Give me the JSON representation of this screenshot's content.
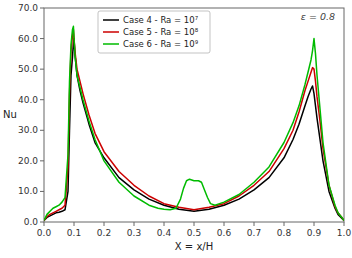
{
  "chart_data": {
    "type": "line",
    "x_label": "X = x/H",
    "y_label": "Nu",
    "annotation": "ε = 0.8",
    "xlim": [
      0.0,
      1.0
    ],
    "ylim": [
      0.0,
      70.0
    ],
    "xticks": [
      {
        "value": 0.0,
        "label": "0.0"
      },
      0.1,
      0.2,
      0.3,
      0.4,
      0.5,
      0.6,
      0.7,
      0.8,
      0.9,
      {
        "value": 1.0,
        "label": "1.0"
      }
    ],
    "yticks": [
      {
        "value": 0.0,
        "label": "0.0"
      },
      {
        "value": 10.0,
        "label": "10.0"
      },
      {
        "value": 20.0,
        "label": "20.0"
      },
      {
        "value": 30.0,
        "label": "30.0"
      },
      {
        "value": 40.0,
        "label": "40.0"
      },
      {
        "value": 50.0,
        "label": "50.0"
      },
      {
        "value": 60.0,
        "label": "60.0"
      },
      {
        "value": 70.0,
        "label": "70.0"
      }
    ],
    "grid": false,
    "legend": "upper left",
    "series": [
      {
        "name": "Case 4 - Ra = 10⁷",
        "color": "#000000",
        "x": [
          0.0,
          0.005,
          0.01,
          0.02,
          0.03,
          0.04,
          0.05,
          0.06,
          0.07,
          0.08,
          0.085,
          0.09,
          0.095,
          0.098,
          0.1,
          0.103,
          0.11,
          0.12,
          0.13,
          0.15,
          0.17,
          0.2,
          0.25,
          0.3,
          0.35,
          0.4,
          0.45,
          0.5,
          0.55,
          0.6,
          0.65,
          0.7,
          0.75,
          0.8,
          0.83,
          0.85,
          0.87,
          0.88,
          0.89,
          0.895,
          0.9,
          0.905,
          0.91,
          0.92,
          0.93,
          0.95,
          0.97,
          0.98,
          0.99,
          0.995,
          1.0
        ],
        "values": [
          0.5,
          1.0,
          1.5,
          2.0,
          2.5,
          3.0,
          3.2,
          3.5,
          4.0,
          10.0,
          30.0,
          48.0,
          54.0,
          58.5,
          60.0,
          55.0,
          48.0,
          43.0,
          39.0,
          32.0,
          26.0,
          21.0,
          14.5,
          10.5,
          7.5,
          5.5,
          4.2,
          3.5,
          4.2,
          5.5,
          7.5,
          10.5,
          14.5,
          21.0,
          27.0,
          32.0,
          38.0,
          41.0,
          43.5,
          44.5,
          42.0,
          38.0,
          34.0,
          27.0,
          20.0,
          10.0,
          4.5,
          2.5,
          1.5,
          1.0,
          0.5
        ]
      },
      {
        "name": "Case 5 - Ra = 10⁸",
        "color": "#cc0000",
        "x": [
          0.0,
          0.005,
          0.01,
          0.02,
          0.03,
          0.04,
          0.05,
          0.06,
          0.07,
          0.08,
          0.085,
          0.09,
          0.095,
          0.098,
          0.1,
          0.103,
          0.11,
          0.12,
          0.13,
          0.15,
          0.17,
          0.2,
          0.25,
          0.3,
          0.35,
          0.4,
          0.45,
          0.5,
          0.55,
          0.6,
          0.65,
          0.7,
          0.75,
          0.8,
          0.83,
          0.85,
          0.87,
          0.88,
          0.89,
          0.895,
          0.9,
          0.905,
          0.91,
          0.92,
          0.93,
          0.95,
          0.97,
          0.98,
          0.99,
          0.995,
          1.0
        ],
        "values": [
          0.5,
          1.2,
          1.8,
          2.5,
          3.0,
          3.5,
          4.0,
          4.5,
          5.5,
          18.0,
          42.0,
          56.0,
          61.0,
          63.0,
          60.0,
          56.0,
          50.0,
          46.0,
          42.0,
          35.0,
          29.0,
          23.0,
          16.5,
          12.0,
          8.5,
          6.0,
          4.8,
          4.0,
          4.8,
          6.0,
          8.5,
          12.0,
          16.5,
          24.0,
          30.0,
          36.0,
          43.0,
          46.0,
          49.0,
          50.5,
          50.0,
          46.0,
          41.0,
          33.0,
          24.0,
          12.0,
          5.0,
          3.0,
          1.8,
          1.2,
          0.5
        ]
      },
      {
        "name": "Case 6 - Ra = 10⁹",
        "color": "#00bb00",
        "x": [
          0.0,
          0.005,
          0.01,
          0.02,
          0.03,
          0.04,
          0.05,
          0.06,
          0.07,
          0.08,
          0.085,
          0.09,
          0.095,
          0.098,
          0.1,
          0.103,
          0.11,
          0.12,
          0.13,
          0.15,
          0.17,
          0.2,
          0.25,
          0.3,
          0.35,
          0.38,
          0.4,
          0.42,
          0.44,
          0.455,
          0.465,
          0.475,
          0.485,
          0.5,
          0.515,
          0.525,
          0.535,
          0.545,
          0.555,
          0.57,
          0.6,
          0.65,
          0.7,
          0.75,
          0.8,
          0.83,
          0.85,
          0.87,
          0.88,
          0.89,
          0.895,
          0.9,
          0.905,
          0.91,
          0.92,
          0.93,
          0.95,
          0.97,
          0.98,
          0.99,
          0.995,
          1.0
        ],
        "values": [
          0.5,
          1.5,
          2.5,
          3.5,
          4.5,
          5.0,
          5.5,
          6.5,
          8.0,
          22.0,
          46.0,
          58.0,
          63.0,
          64.0,
          60.5,
          55.0,
          48.0,
          44.0,
          40.0,
          33.0,
          27.0,
          20.0,
          13.0,
          8.5,
          5.5,
          4.5,
          4.2,
          4.0,
          4.5,
          7.5,
          11.0,
          13.5,
          14.0,
          13.5,
          13.5,
          13.0,
          10.5,
          8.0,
          6.0,
          5.5,
          6.5,
          9.0,
          13.0,
          18.0,
          26.0,
          32.5,
          38.0,
          45.0,
          49.0,
          53.0,
          56.0,
          60.0,
          55.0,
          48.0,
          37.0,
          26.0,
          12.0,
          5.5,
          3.0,
          1.8,
          1.2,
          0.5
        ]
      }
    ]
  }
}
